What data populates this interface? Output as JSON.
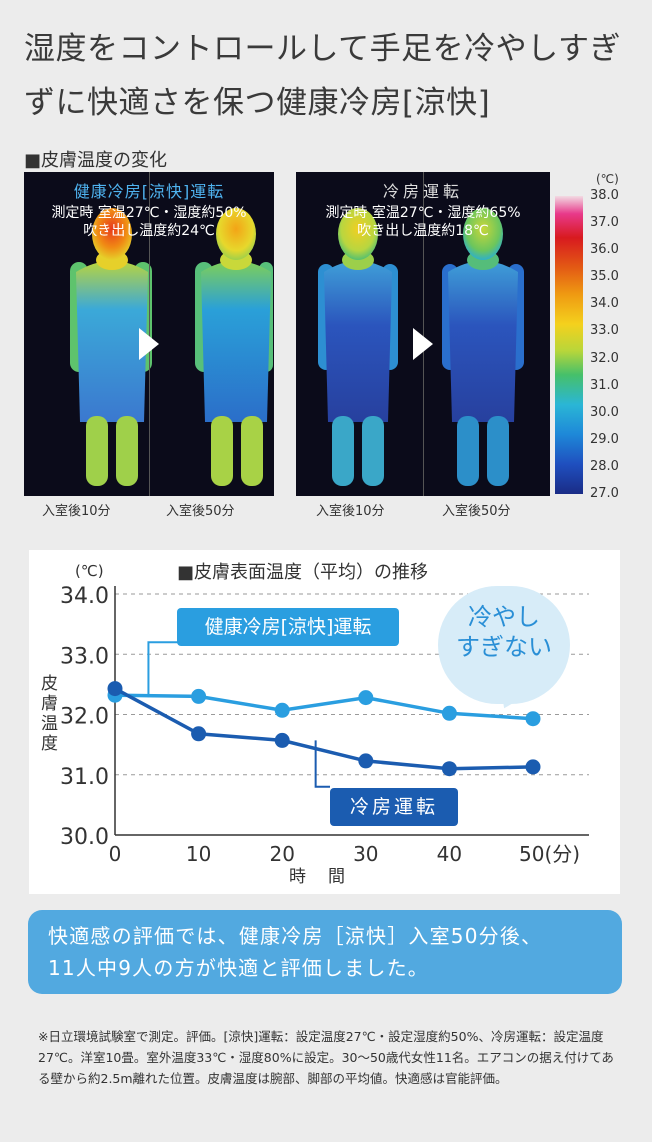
{
  "headline": "湿度をコントロールして手足を冷やしすぎずに快適さを保つ健康冷房[涼快]",
  "thermal": {
    "section_label": "■皮膚温度の変化",
    "left": {
      "mode": "健康冷房[涼快]運転",
      "cond_line1": "測定時 室温27℃・湿度約50%",
      "cond_line2": "吹き出し温度約24℃",
      "t1": "入室後10分",
      "t2": "入室後50分"
    },
    "right": {
      "mode": "冷房運転",
      "cond_line1": "測定時 室温27℃・湿度約65%",
      "cond_line2": "吹き出し温度約18℃",
      "t1": "入室後10分",
      "t2": "入室後50分"
    },
    "scale_unit": "(℃)",
    "scale_ticks": [
      "38.0",
      "37.0",
      "36.0",
      "35.0",
      "34.0",
      "33.0",
      "32.0",
      "31.0",
      "30.0",
      "29.0",
      "28.0",
      "27.0"
    ]
  },
  "chart_data": {
    "type": "line",
    "title": "■皮膚表面温度（平均）の推移",
    "unit_label": "(℃)",
    "ylabel": "皮膚温度",
    "xlabel": "時間",
    "x": [
      0,
      10,
      20,
      30,
      40,
      50
    ],
    "x_tick_labels": [
      "0",
      "10",
      "20",
      "30",
      "40",
      "50(分)"
    ],
    "y_tick_labels": [
      "34.0",
      "33.0",
      "32.0",
      "31.0",
      "30.0"
    ],
    "ylim": [
      30.0,
      34.0
    ],
    "xlim": [
      0,
      50
    ],
    "series": [
      {
        "name": "健康冷房[涼快]運転",
        "color": "#2a9ee0",
        "values": [
          32.32,
          32.3,
          32.07,
          32.28,
          32.02,
          31.93
        ]
      },
      {
        "name": "冷房運転",
        "color": "#1b5cb0",
        "values": [
          32.43,
          31.68,
          31.57,
          31.23,
          31.1,
          31.13
        ]
      }
    ],
    "callout": "冷やしすぎない",
    "callout_line1": "冷やし",
    "callout_line2": "すぎない"
  },
  "result": {
    "line1": "快適感の評価では、健康冷房［涼快］入室50分後、",
    "line2": "11人中9人の方が快適と評価しました。"
  },
  "footnote": "※日立環境試験室で測定。評価。[涼快]運転：設定温度27℃・設定湿度約50%、冷房運転：設定温度27℃。洋室10畳。室外温度33℃・湿度80%に設定。30～50歳代女性11名。エアコンの据え付けてある壁から約2.5m離れた位置。皮膚温度は腕部、脚部の平均値。快適感は官能評価。"
}
